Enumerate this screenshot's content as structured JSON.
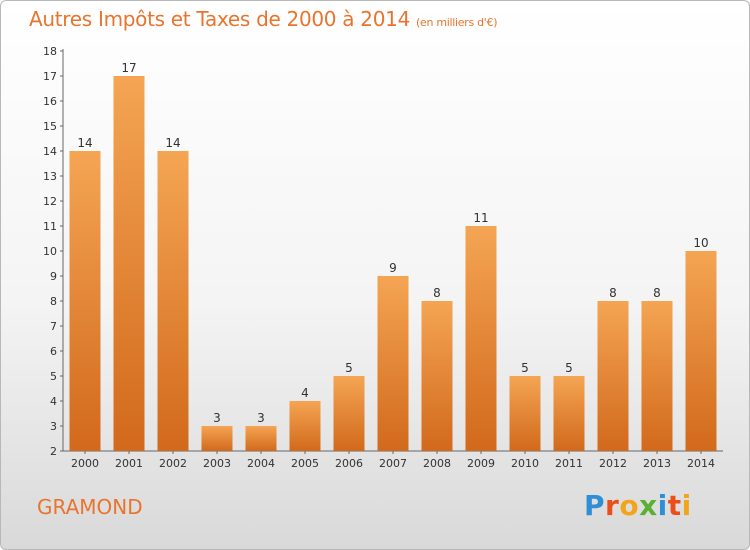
{
  "title": "Autres Impôts et Taxes de 2000 à 2014",
  "subtitle": "(en milliers d'€)",
  "place": "GRAMOND",
  "logo": {
    "letters": [
      "P",
      "r",
      "o",
      "x",
      "i",
      "t",
      "i"
    ],
    "colors": [
      "#2f8fd6",
      "#e94e1b",
      "#f2a51a",
      "#5bb033",
      "#2f8fd6",
      "#e94e1b",
      "#f2a51a"
    ]
  },
  "colors": {
    "accent": "#e8742d",
    "bar_top": "#f4a553",
    "bar_bottom": "#d2691c"
  },
  "chart_data": {
    "type": "bar",
    "categories": [
      "2000",
      "2001",
      "2002",
      "2003",
      "2004",
      "2005",
      "2006",
      "2007",
      "2008",
      "2009",
      "2010",
      "2011",
      "2012",
      "2013",
      "2014"
    ],
    "values": [
      14,
      17,
      14,
      3,
      3,
      4,
      5,
      9,
      8,
      11,
      5,
      5,
      8,
      8,
      10
    ],
    "ylim": [
      2,
      18
    ],
    "yticks": [
      2,
      3,
      4,
      5,
      6,
      7,
      8,
      9,
      10,
      11,
      12,
      13,
      14,
      15,
      16,
      17,
      18
    ],
    "grid": false,
    "title": "Autres Impôts et Taxes de 2000 à 2014",
    "xlabel": "",
    "ylabel": ""
  }
}
